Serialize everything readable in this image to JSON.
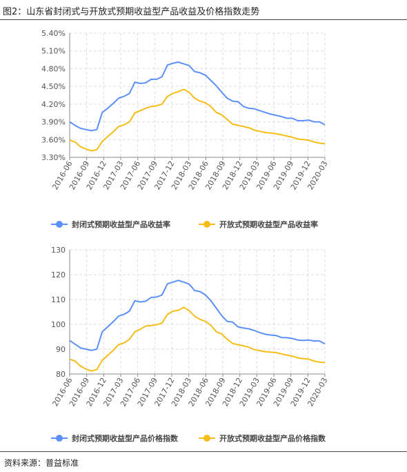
{
  "figure": {
    "title": "图2：山东省封闭式与开放式预期收益型产品收益及价格指数走势",
    "source": "资料来源：普益标准"
  },
  "colors": {
    "blue": "#5b8ff9",
    "orange": "#f6bd16"
  },
  "chart_data": [
    {
      "type": "line",
      "title": "",
      "x_tick_labels": [
        "2016-06",
        "2016-09",
        "2016-12",
        "2017-03",
        "2017-06",
        "2017-09",
        "2017-12",
        "2018-03",
        "2018-06",
        "2018-09",
        "2018-12",
        "2019-03",
        "2019-06",
        "2019-09",
        "2019-12",
        "2020-03"
      ],
      "y_tick_labels": [
        "3.30%",
        "3.60%",
        "3.90%",
        "4.20%",
        "4.50%",
        "4.80%",
        "5.10%",
        "5.40%"
      ],
      "ylim": [
        3.3,
        5.4
      ],
      "grid": true,
      "legend_position": "bottom",
      "series": [
        {
          "name": "封闭式预期收益型产品收益率",
          "color": "#5b8ff9",
          "values": [
            3.9,
            3.84,
            3.79,
            3.77,
            3.75,
            3.77,
            4.06,
            4.13,
            4.21,
            4.3,
            4.33,
            4.38,
            4.57,
            4.55,
            4.56,
            4.62,
            4.62,
            4.66,
            4.86,
            4.89,
            4.91,
            4.88,
            4.85,
            4.75,
            4.73,
            4.69,
            4.6,
            4.51,
            4.4,
            4.3,
            4.25,
            4.24,
            4.16,
            4.13,
            4.12,
            4.09,
            4.06,
            4.03,
            4.01,
            3.99,
            3.96,
            3.96,
            3.92,
            3.92,
            3.93,
            3.9,
            3.9,
            3.85
          ]
        },
        {
          "name": "开放式预期收益型产品收益率",
          "color": "#f6bd16",
          "values": [
            3.59,
            3.56,
            3.48,
            3.44,
            3.41,
            3.43,
            3.57,
            3.65,
            3.73,
            3.82,
            3.85,
            3.9,
            4.05,
            4.09,
            4.13,
            4.16,
            4.17,
            4.2,
            4.33,
            4.38,
            4.41,
            4.45,
            4.4,
            4.3,
            4.25,
            4.22,
            4.16,
            4.06,
            4.02,
            3.94,
            3.86,
            3.84,
            3.82,
            3.8,
            3.76,
            3.74,
            3.72,
            3.71,
            3.7,
            3.68,
            3.66,
            3.64,
            3.61,
            3.6,
            3.59,
            3.56,
            3.54,
            3.53
          ]
        }
      ]
    },
    {
      "type": "line",
      "title": "",
      "x_tick_labels": [
        "2016-06",
        "2016-09",
        "2016-12",
        "2017-03",
        "2017-06",
        "2017-09",
        "2017-12",
        "2018-03",
        "2018-06",
        "2018-09",
        "2018-12",
        "2019-03",
        "2019-06",
        "2019-09",
        "2019-12",
        "2020-03"
      ],
      "y_tick_labels": [
        "80",
        "90",
        "100",
        "110",
        "120",
        "130"
      ],
      "ylim": [
        80,
        130
      ],
      "grid": true,
      "legend_position": "bottom",
      "series": [
        {
          "name": "封闭式预期收益型产品价格指数",
          "color": "#5b8ff9",
          "values": [
            93.5,
            92.0,
            90.5,
            90.0,
            89.5,
            90.0,
            97.0,
            99.0,
            101.0,
            103.3,
            104.0,
            105.3,
            109.5,
            109.0,
            109.3,
            110.8,
            111.0,
            111.8,
            116.3,
            117.0,
            117.7,
            117.0,
            116.2,
            113.6,
            113.2,
            111.8,
            109.5,
            106.5,
            103.5,
            101.2,
            100.9,
            99.0,
            98.5,
            98.2,
            97.5,
            96.7,
            96.0,
            95.7,
            95.5,
            94.7,
            94.6,
            94.3,
            93.7,
            93.5,
            93.7,
            93.3,
            93.3,
            92.1
          ]
        },
        {
          "name": "开放式预期收益型产品价格指数",
          "color": "#f6bd16",
          "values": [
            86.0,
            85.2,
            83.2,
            82.0,
            81.2,
            81.8,
            85.5,
            87.5,
            89.5,
            91.8,
            92.5,
            94.0,
            97.0,
            98.0,
            99.3,
            99.5,
            99.8,
            100.5,
            104.0,
            105.3,
            105.6,
            106.8,
            105.5,
            103.3,
            102.0,
            101.2,
            99.6,
            97.0,
            96.1,
            94.0,
            92.3,
            91.8,
            91.3,
            90.8,
            89.8,
            89.4,
            89.0,
            88.8,
            88.6,
            88.1,
            87.6,
            87.2,
            86.5,
            86.2,
            86.0,
            85.2,
            84.8,
            84.6
          ]
        }
      ]
    }
  ]
}
